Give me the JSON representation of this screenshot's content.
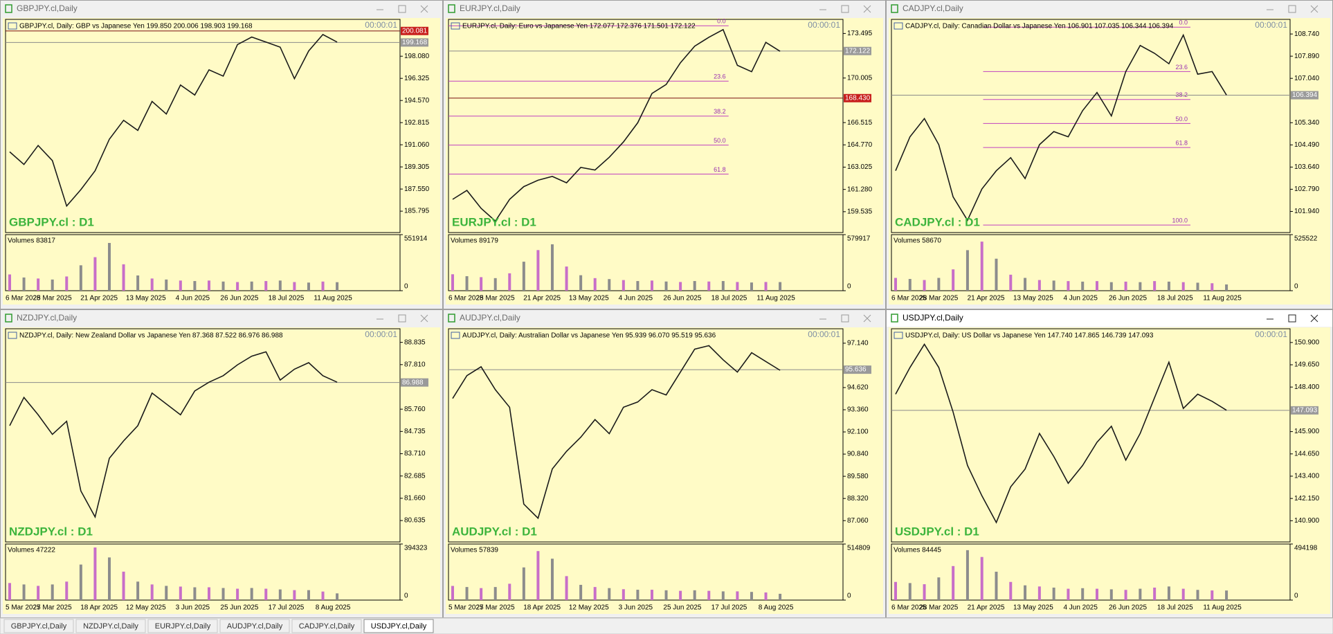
{
  "windows": [
    {
      "title": "GBPJPY.cl,Daily",
      "header": "GBPJPY.cl, Daily:  GBP vs Japanese Yen  199.850 200.006 198.903 199.168",
      "timer": "00:00:01",
      "chart_label": "GBPJPY.cl : D1",
      "ylim": [
        184.1,
        201.0
      ],
      "yticks": [
        {
          "value": 198.08,
          "label": "198.080"
        },
        {
          "value": 196.325,
          "label": "196.325"
        },
        {
          "value": 194.57,
          "label": "194.570"
        },
        {
          "value": 192.815,
          "label": "192.815"
        },
        {
          "value": 191.06,
          "label": "191.060"
        },
        {
          "value": 189.305,
          "label": "189.305"
        },
        {
          "value": 187.55,
          "label": "187.550"
        },
        {
          "value": 185.795,
          "label": "185.795"
        }
      ],
      "price_lines": [
        {
          "value": 200.081,
          "label": "200.081",
          "color": "#c8201e"
        },
        {
          "value": 199.168,
          "label": "199.168",
          "color": "#9a9a9a"
        }
      ],
      "prices": [
        190.5,
        189.5,
        191,
        189.8,
        186.2,
        187.5,
        189,
        191.5,
        193,
        192.2,
        194.5,
        193.5,
        195.8,
        195,
        197,
        196.5,
        199,
        199.6,
        199.2,
        198.8,
        196.3,
        198.5,
        199.8,
        199.2
      ],
      "volume_label": "Volumes 83817",
      "vlim": [
        0,
        551914
      ],
      "vticks": [
        0,
        551914
      ],
      "volumes": [
        160000,
        130000,
        120000,
        110000,
        140000,
        250000,
        330000,
        470000,
        260000,
        150000,
        120000,
        110000,
        100000,
        95000,
        100000,
        90000,
        85000,
        90000,
        95000,
        100000,
        85000,
        80000,
        90000,
        83817
      ],
      "dates": [
        "6 Mar 2025",
        "28 Mar 2025",
        "21 Apr 2025",
        "13 May 2025",
        "4 Jun 2025",
        "26 Jun 2025",
        "18 Jul 2025",
        "11 Aug 2025"
      ],
      "fibo": []
    },
    {
      "title": "EURJPY.cl,Daily",
      "header": "EURJPY.cl, Daily:  Euro vs Japanese Yen  172.077 172.376 171.501 172.122",
      "timer": "00:00:01",
      "chart_label": "EURJPY.cl : D1",
      "ylim": [
        157.9,
        174.6
      ],
      "yticks": [
        {
          "value": 173.495,
          "label": "173.495"
        },
        {
          "value": 170.005,
          "label": "170.005"
        },
        {
          "value": 166.515,
          "label": "166.515"
        },
        {
          "value": 164.77,
          "label": "164.770"
        },
        {
          "value": 163.025,
          "label": "163.025"
        },
        {
          "value": 161.28,
          "label": "161.280"
        },
        {
          "value": 159.535,
          "label": "159.535"
        }
      ],
      "price_lines": [
        {
          "value": 172.122,
          "label": "172.122",
          "color": "#9a9a9a"
        },
        {
          "value": 168.43,
          "label": "168.430",
          "color": "#c8201e"
        }
      ],
      "prices": [
        160.5,
        161.2,
        159.8,
        158.8,
        160.5,
        161.5,
        162,
        162.3,
        161.8,
        163,
        162.8,
        163.8,
        165,
        166.5,
        168.8,
        169.5,
        171.2,
        172.5,
        173.2,
        173.8,
        171,
        170.5,
        172.8,
        172.1
      ],
      "volume_label": "Volumes 89179",
      "vlim": [
        0,
        579917
      ],
      "vticks": [
        0,
        579917
      ],
      "volumes": [
        170000,
        150000,
        140000,
        130000,
        180000,
        300000,
        420000,
        480000,
        250000,
        160000,
        130000,
        120000,
        110000,
        100000,
        105000,
        95000,
        90000,
        100000,
        95000,
        100000,
        90000,
        85000,
        90000,
        89179
      ],
      "dates": [
        "6 Mar 2025",
        "28 Mar 2025",
        "21 Apr 2025",
        "13 May 2025",
        "4 Jun 2025",
        "26 Jun 2025",
        "18 Jul 2025",
        "11 Aug 2025"
      ],
      "fibo": [
        {
          "label": "0.0",
          "price": 174.1
        },
        {
          "label": "23.6",
          "price": 169.76
        },
        {
          "label": "38.2",
          "price": 167.02
        },
        {
          "label": "50.0",
          "price": 164.75
        },
        {
          "label": "61.8",
          "price": 162.48
        }
      ]
    },
    {
      "title": "CADJPY.cl,Daily",
      "header": "CADJPY.cl, Daily:  Canadian Dollar vs Japanese Yen  106.901 107.035 106.344 106.394",
      "timer": "00:00:01",
      "chart_label": "CADJPY.cl : D1",
      "ylim": [
        101.13,
        109.3
      ],
      "yticks": [
        {
          "value": 108.74,
          "label": "108.740"
        },
        {
          "value": 107.89,
          "label": "107.890"
        },
        {
          "value": 107.04,
          "label": "107.040"
        },
        {
          "value": 105.34,
          "label": "105.340"
        },
        {
          "value": 104.49,
          "label": "104.490"
        },
        {
          "value": 103.64,
          "label": "103.640"
        },
        {
          "value": 102.79,
          "label": "102.790"
        },
        {
          "value": 101.94,
          "label": "101.940"
        }
      ],
      "price_lines": [
        {
          "value": 106.394,
          "label": "106.394",
          "color": "#9a9a9a"
        }
      ],
      "prices": [
        103.5,
        104.8,
        105.5,
        104.5,
        102.5,
        101.6,
        102.8,
        103.5,
        104,
        103.2,
        104.5,
        105,
        104.8,
        105.8,
        106.5,
        105.6,
        107.3,
        108.3,
        108,
        107.6,
        108.7,
        107.2,
        107.3,
        106.4
      ],
      "volume_label": "Volumes 58670",
      "vlim": [
        0,
        525522
      ],
      "vticks": [
        0,
        525522
      ],
      "volumes": [
        120000,
        110000,
        100000,
        120000,
        200000,
        380000,
        460000,
        300000,
        150000,
        120000,
        100000,
        95000,
        90000,
        85000,
        90000,
        80000,
        85000,
        80000,
        90000,
        85000,
        80000,
        75000,
        70000,
        58670
      ],
      "dates": [
        "6 Mar 2025",
        "28 Mar 2025",
        "21 Apr 2025",
        "13 May 2025",
        "4 Jun 2025",
        "26 Jun 2025",
        "18 Jul 2025",
        "11 Aug 2025"
      ],
      "fibo": [
        {
          "label": "0.0",
          "price": 109.0
        },
        {
          "label": "23.6",
          "price": 107.3
        },
        {
          "label": "38.2",
          "price": 106.23
        },
        {
          "label": "50.0",
          "price": 105.31
        },
        {
          "label": "61.8",
          "price": 104.39
        },
        {
          "label": "100.0",
          "price": 101.42
        }
      ]
    },
    {
      "title": "NZDJPY.cl,Daily",
      "header": "NZDJPY.cl, Daily:  New Zealand Dollar vs Japanese Yen  87.368 87.522 86.976 86.988",
      "timer": "00:00:01",
      "chart_label": "NZDJPY.cl : D1",
      "ylim": [
        79.65,
        89.46
      ],
      "yticks": [
        {
          "value": 88.835,
          "label": "88.835"
        },
        {
          "value": 87.81,
          "label": "87.810"
        },
        {
          "value": 85.76,
          "label": "85.760"
        },
        {
          "value": 84.735,
          "label": "84.735"
        },
        {
          "value": 83.71,
          "label": "83.710"
        },
        {
          "value": 82.685,
          "label": "82.685"
        },
        {
          "value": 81.66,
          "label": "81.660"
        },
        {
          "value": 80.635,
          "label": "80.635"
        }
      ],
      "price_lines": [
        {
          "value": 86.988,
          "label": "86.988",
          "color": "#9a9a9a"
        }
      ],
      "prices": [
        85,
        86.3,
        85.5,
        84.6,
        85.2,
        82,
        80.8,
        83.5,
        84.3,
        85,
        86.5,
        86,
        85.5,
        86.6,
        87,
        87.3,
        87.8,
        88.2,
        88.4,
        87.1,
        87.6,
        87.9,
        87.3,
        87
      ],
      "volume_label": "Volumes 47222",
      "vlim": [
        0,
        394323
      ],
      "vticks": [
        0,
        394323
      ],
      "volumes": [
        120000,
        110000,
        100000,
        110000,
        130000,
        250000,
        370000,
        300000,
        200000,
        130000,
        110000,
        100000,
        95000,
        90000,
        90000,
        85000,
        80000,
        85000,
        80000,
        75000,
        70000,
        70000,
        60000,
        47222
      ],
      "dates": [
        "5 Mar 2025",
        "27 Mar 2025",
        "18 Apr 2025",
        "12 May 2025",
        "3 Jun 2025",
        "25 Jun 2025",
        "17 Jul 2025",
        "8 Aug 2025"
      ],
      "fibo": []
    },
    {
      "title": "AUDJPY.cl,Daily",
      "header": "AUDJPY.cl, Daily:  Australian Dollar vs Japanese Yen  95.939 96.070 95.519 95.636",
      "timer": "00:00:01",
      "chart_label": "AUDJPY.cl : D1",
      "ylim": [
        85.85,
        97.96
      ],
      "yticks": [
        {
          "value": 97.14,
          "label": "97.140"
        },
        {
          "value": 94.62,
          "label": "94.620"
        },
        {
          "value": 93.36,
          "label": "93.360"
        },
        {
          "value": 92.1,
          "label": "92.100"
        },
        {
          "value": 90.84,
          "label": "90.840"
        },
        {
          "value": 89.58,
          "label": "89.580"
        },
        {
          "value": 88.32,
          "label": "88.320"
        },
        {
          "value": 87.06,
          "label": "87.060"
        }
      ],
      "price_lines": [
        {
          "value": 95.636,
          "label": "95.636",
          "color": "#9a9a9a"
        }
      ],
      "prices": [
        94,
        95.3,
        95.8,
        94.5,
        93.5,
        88,
        87.2,
        90,
        91,
        91.8,
        92.8,
        92,
        93.5,
        93.8,
        94.5,
        94.2,
        95.5,
        96.8,
        97,
        96.2,
        95.5,
        96.6,
        96.1,
        95.6
      ],
      "volume_label": "Volumes 57839",
      "vlim": [
        0,
        514809
      ],
      "vticks": [
        0,
        514809
      ],
      "volumes": [
        130000,
        120000,
        110000,
        120000,
        150000,
        300000,
        450000,
        380000,
        220000,
        140000,
        120000,
        110000,
        100000,
        95000,
        95000,
        90000,
        85000,
        90000,
        85000,
        80000,
        80000,
        75000,
        70000,
        57839
      ],
      "dates": [
        "5 Mar 2025",
        "27 Mar 2025",
        "18 Apr 2025",
        "12 May 2025",
        "3 Jun 2025",
        "25 Jun 2025",
        "17 Jul 2025",
        "8 Aug 2025"
      ],
      "fibo": []
    },
    {
      "title": "USDJPY.cl,Daily",
      "header": "USDJPY.cl, Daily:  US Dollar vs Japanese Yen  147.740 147.865 146.739 147.093",
      "timer": "00:00:01",
      "chart_label": "USDJPY.cl : D1",
      "ylim": [
        139.71,
        151.67
      ],
      "yticks": [
        {
          "value": 150.9,
          "label": "150.900"
        },
        {
          "value": 149.65,
          "label": "149.650"
        },
        {
          "value": 148.4,
          "label": "148.400"
        },
        {
          "value": 145.9,
          "label": "145.900"
        },
        {
          "value": 144.65,
          "label": "144.650"
        },
        {
          "value": 143.4,
          "label": "143.400"
        },
        {
          "value": 142.15,
          "label": "142.150"
        },
        {
          "value": 140.9,
          "label": "140.900"
        }
      ],
      "price_lines": [
        {
          "value": 147.093,
          "label": "147.093",
          "color": "#9a9a9a"
        }
      ],
      "prices": [
        148,
        149.5,
        150.8,
        149.5,
        147,
        144,
        142.3,
        140.8,
        142.8,
        143.8,
        145.8,
        144.5,
        143,
        144,
        145.3,
        146.2,
        144.3,
        145.8,
        147.8,
        149.8,
        147.2,
        148,
        147.6,
        147.1
      ],
      "volume_label": "Volumes 84445",
      "vlim": [
        0,
        494198
      ],
      "vticks": [
        0,
        494198
      ],
      "volumes": [
        160000,
        150000,
        140000,
        200000,
        300000,
        440000,
        380000,
        250000,
        160000,
        130000,
        120000,
        110000,
        100000,
        105000,
        100000,
        95000,
        90000,
        100000,
        110000,
        120000,
        100000,
        90000,
        85000,
        84445
      ],
      "dates": [
        "6 Mar 2025",
        "28 Mar 2025",
        "21 Apr 2025",
        "13 May 2025",
        "4 Jun 2025",
        "26 Jun 2025",
        "18 Jul 2025",
        "11 Aug 2025"
      ],
      "fibo": []
    }
  ],
  "tabs": [
    "GBPJPY.cl,Daily",
    "NZDJPY.cl,Daily",
    "EURJPY.cl,Daily",
    "AUDJPY.cl,Daily",
    "CADJPY.cl,Daily",
    "USDJPY.cl,Daily"
  ]
}
